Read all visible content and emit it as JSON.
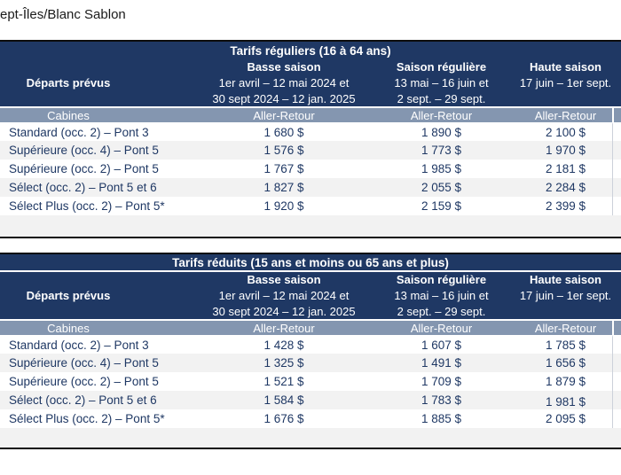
{
  "page": {
    "title": "ept-Îles/Blanc Sablon"
  },
  "colors": {
    "header_bg": "#1F3864",
    "subheader_bg": "#8496B0",
    "alt_row_bg": "#F2F2F2",
    "cell_text": "#1F3864",
    "header_text": "#FFFFFF"
  },
  "tables": [
    {
      "title": "Tarifs réguliers (16 à 64 ans)",
      "departures_label": "Départs prévus",
      "cabins_label": "Cabines",
      "fare_label": "Aller-Retour",
      "seasons": [
        {
          "name": "Basse saison",
          "date_line1": "1er avril – 12 mai 2024 et",
          "date_line2": "30 sept 2024 – 12 jan. 2025"
        },
        {
          "name": "Saison régulière",
          "date_line1": "13 mai – 16 juin et",
          "date_line2": "2 sept. – 29 sept."
        },
        {
          "name": "Haute saison",
          "date_line1": "17 juin – 1er sept.",
          "date_line2": ""
        }
      ],
      "rows": [
        {
          "cabin": "Standard (occ. 2) – Pont 3",
          "low": "1 680 $",
          "regular": "1 890 $",
          "high": "2 100 $"
        },
        {
          "cabin": "Supérieure (occ. 4) – Pont 5",
          "low": "1 576 $",
          "regular": "1 773 $",
          "high": "1 970 $"
        },
        {
          "cabin": "Supérieure (occ. 2) – Pont 5",
          "low": "1 767 $",
          "regular": "1 985 $",
          "high": "2 181 $"
        },
        {
          "cabin": "Sélect (occ. 2) – Pont 5 et 6",
          "low": "1 827 $",
          "regular": "2 055 $",
          "high": "2 284 $"
        },
        {
          "cabin": "Sélect Plus (occ. 2) – Pont 5*",
          "low": "1 920 $",
          "regular": "2 159 $",
          "high": "2 399 $"
        }
      ]
    },
    {
      "title": "Tarifs réduits (15 ans et moins ou 65 ans et plus)",
      "departures_label": "Départs prévus",
      "cabins_label": "Cabines",
      "fare_label": "Aller-Retour",
      "seasons": [
        {
          "name": "Basse saison",
          "date_line1": "1er avril – 12 mai 2024 et",
          "date_line2": "30 sept 2024 – 12 jan. 2025"
        },
        {
          "name": "Saison régulière",
          "date_line1": "13 mai – 16 juin et",
          "date_line2": "2 sept. – 29 sept."
        },
        {
          "name": "Haute saison",
          "date_line1": "17 juin – 1er sept.",
          "date_line2": ""
        }
      ],
      "rows": [
        {
          "cabin": "Standard (occ. 2) – Pont 3",
          "low": "1 428 $",
          "regular": "1 607 $",
          "high": "1 785 $"
        },
        {
          "cabin": "Supérieure (occ. 4) – Pont 5",
          "low": "1 325 $",
          "regular": "1 491 $",
          "high": "1 656 $"
        },
        {
          "cabin": "Supérieure (occ. 2) – Pont 5",
          "low": "1 521 $",
          "regular": "1 709 $",
          "high": "1 879 $"
        },
        {
          "cabin": "Sélect (occ. 2) – Pont 5 et 6",
          "low": "1 584 $",
          "regular": "1 783 $",
          "high": "1 981 $"
        },
        {
          "cabin": "Sélect Plus (occ. 2) – Pont 5*",
          "low": "1 676 $",
          "regular": "1 885 $",
          "high": "2 095 $"
        }
      ]
    }
  ]
}
